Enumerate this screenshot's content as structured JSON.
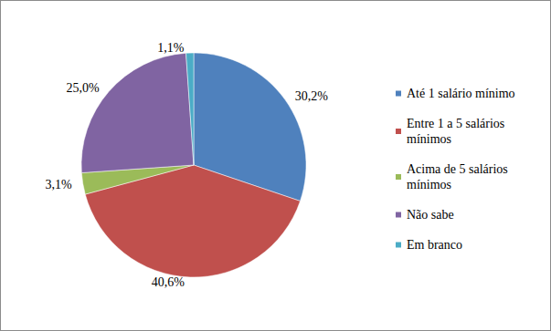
{
  "chart_data": {
    "type": "pie",
    "categories": [
      "Até 1 salário mínimo",
      "Entre 1 a 5 salários mínimos",
      "Acima de 5 salários mínimos",
      "Não sabe",
      "Em branco"
    ],
    "values": [
      30.2,
      40.6,
      3.1,
      25.0,
      1.1
    ],
    "value_labels": [
      "30,2%",
      "40,6%",
      "3,1%",
      "25,0%",
      "1,1%"
    ],
    "colors": [
      "#4f81bd",
      "#c0504d",
      "#9bbb59",
      "#8064a2",
      "#4bacc6"
    ],
    "legend": "right",
    "data_labels": true
  }
}
